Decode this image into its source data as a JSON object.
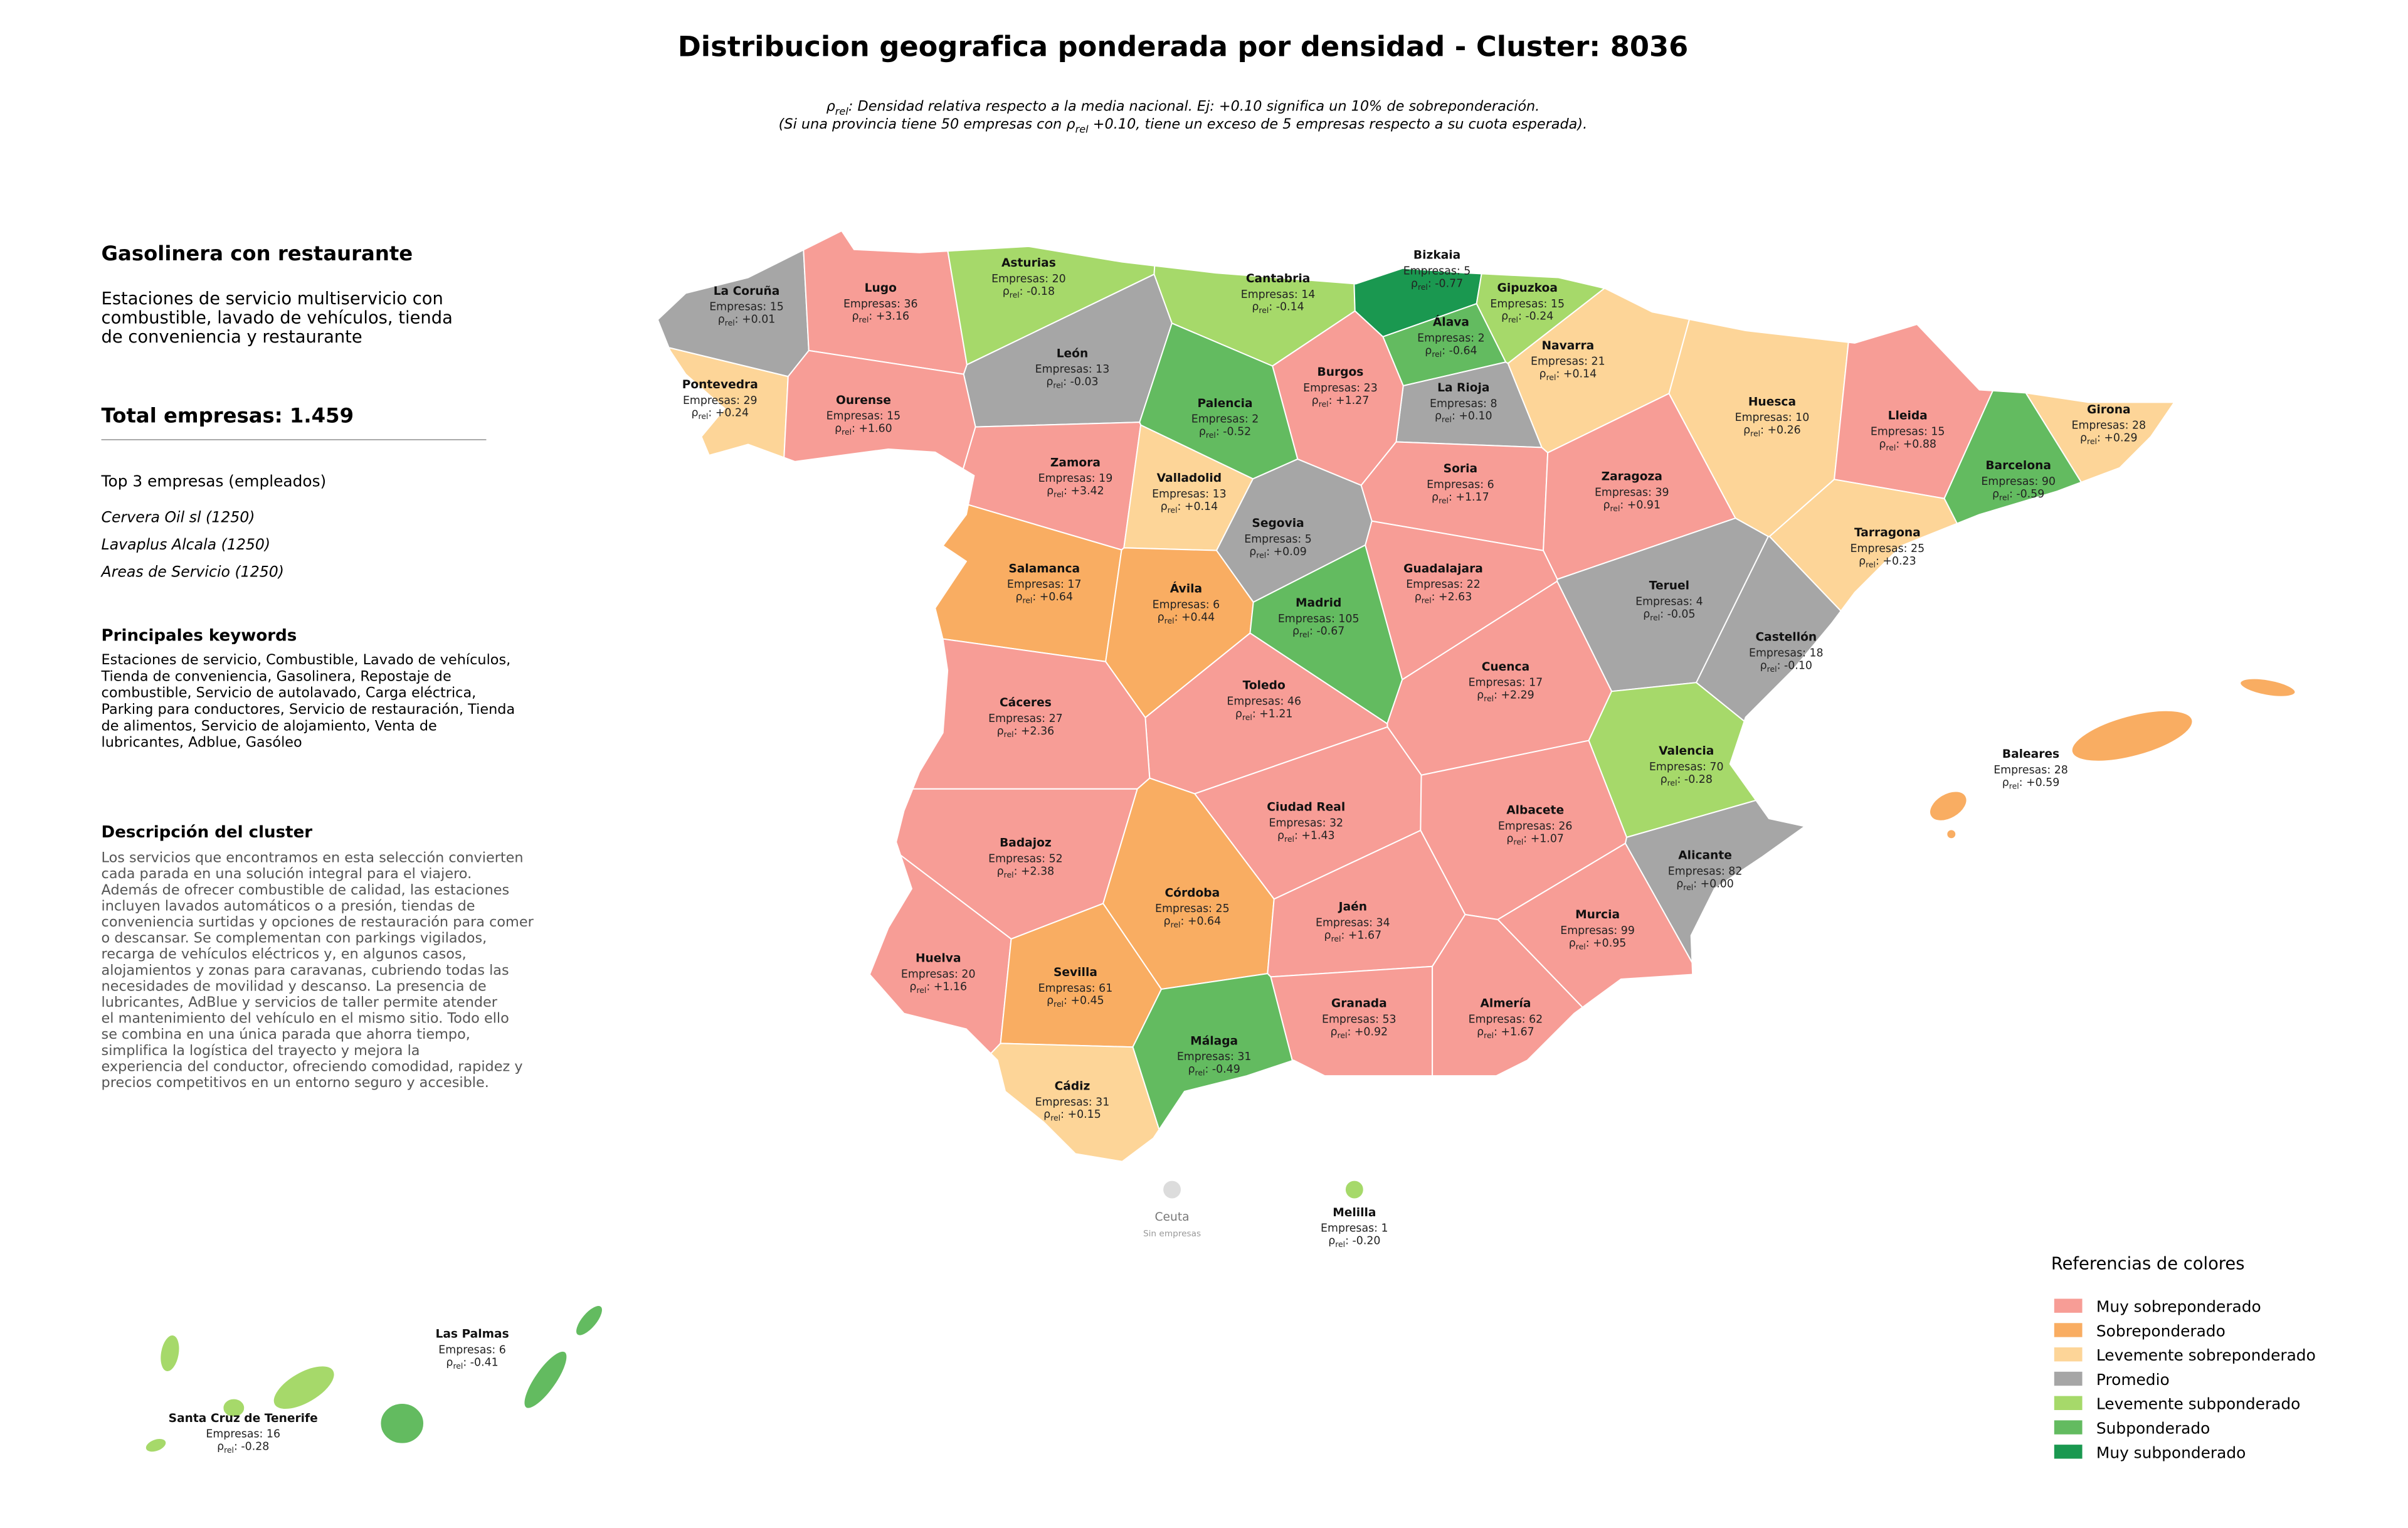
{
  "header": {
    "title": "Distribucion geografica ponderada por densidad - Cluster: 8036",
    "subtitle": [
      [
        {
          "text": "ρ"
        },
        {
          "text": "rel",
          "sub": true
        },
        {
          "text": ": Densidad relativa respecto a la media nacional. Ej: +0.10 significa un 10% de sobreponderación."
        }
      ],
      [
        {
          "text": "(Si una provincia tiene 50 empresas con "
        },
        {
          "text": "ρ"
        },
        {
          "text": "rel",
          "sub": true
        },
        {
          "text": " +0.10, tiene un exceso de 5 empresas respecto a su cuota esperada)."
        }
      ]
    ]
  },
  "panel": {
    "cluster_name": "Gasolinera con restaurante",
    "cluster_summary": [
      "Estaciones de servicio multiservicio con",
      "combustible, lavado de vehículos, tienda",
      "de conveniencia y restaurante"
    ],
    "total": "Total empresas: 1.459",
    "top_title": "Top 3 empresas (empleados)",
    "top": [
      "Cervera Oil sl (1250)",
      "Lavaplus Alcala (1250)",
      "Areas de Servicio (1250)"
    ],
    "keywords_title": "Principales keywords",
    "keywords": [
      "Estaciones de servicio, Combustible, Lavado de vehículos,",
      "Tienda de conveniencia, Gasolinera, Repostaje de",
      "combustible, Servicio de autolavado, Carga eléctrica,",
      "Parking para conductores, Servicio de restauración, Tienda",
      "de alimentos, Servicio de alojamiento, Venta de",
      "lubricantes, Adblue, Gasóleo"
    ],
    "description_title": "Descripción del cluster",
    "description": [
      "Los servicios que encontramos en esta selección convierten",
      "cada parada en una solución integral para el viajero.",
      "Además de ofrecer combustible de calidad, las estaciones",
      "incluyen lavados automáticos o a presión, tiendas de",
      "conveniencia surtidas y opciones de restauración para comer",
      "o descansar. Se complementan con parkings vigilados,",
      "recarga de vehículos eléctricos y, en algunos casos,",
      "alojamientos y zonas para caravanas, cubriendo todas las",
      "necesidades de movilidad y descanso. La presencia de",
      "lubricantes, AdBlue y servicios de taller permite atender",
      "el mantenimiento del vehículo en el mismo sitio. Todo ello",
      "se combina en una única parada que ahorra tiempo,",
      "simplifica la logística del trayecto y mejora la",
      "experiencia del conductor, ofreciendo comodidad, rapidez y",
      "precios competitivos en un entorno seguro y accesible."
    ]
  },
  "map": {
    "rho_symbol": "ρ",
    "rho_subscript": "rel",
    "rho_colon": ": ",
    "no_data_color": "#dcdcdc",
    "provinces": [
      {
        "name": "La Coruña",
        "empresas": "Empresas: 15",
        "rho": "+0.01",
        "class": 3
      },
      {
        "name": "Lugo",
        "empresas": "Empresas: 36",
        "rho": "+3.16",
        "class": 0
      },
      {
        "name": "Asturias",
        "empresas": "Empresas: 20",
        "rho": "-0.18",
        "class": 4
      },
      {
        "name": "Cantabria",
        "empresas": "Empresas: 14",
        "rho": "-0.14",
        "class": 4
      },
      {
        "name": "Bizkaia",
        "empresas": "Empresas: 5",
        "rho": "-0.77",
        "class": 6
      },
      {
        "name": "Gipuzkoa",
        "empresas": "Empresas: 15",
        "rho": "-0.24",
        "class": 4
      },
      {
        "name": "Álava",
        "empresas": "Empresas: 2",
        "rho": "-0.64",
        "class": 5
      },
      {
        "name": "Navarra",
        "empresas": "Empresas: 21",
        "rho": "+0.14",
        "class": 2
      },
      {
        "name": "La Rioja",
        "empresas": "Empresas: 8",
        "rho": "+0.10",
        "class": 3
      },
      {
        "name": "Burgos",
        "empresas": "Empresas: 23",
        "rho": "+1.27",
        "class": 0
      },
      {
        "name": "León",
        "empresas": "Empresas: 13",
        "rho": "-0.03",
        "class": 3
      },
      {
        "name": "Palencia",
        "empresas": "Empresas: 2",
        "rho": "-0.52",
        "class": 5
      },
      {
        "name": "Pontevedra",
        "empresas": "Empresas: 29",
        "rho": "+0.24",
        "class": 2
      },
      {
        "name": "Ourense",
        "empresas": "Empresas: 15",
        "rho": "+1.60",
        "class": 0
      },
      {
        "name": "Zamora",
        "empresas": "Empresas: 19",
        "rho": "+3.42",
        "class": 0
      },
      {
        "name": "Valladolid",
        "empresas": "Empresas: 13",
        "rho": "+0.14",
        "class": 2
      },
      {
        "name": "Soria",
        "empresas": "Empresas: 6",
        "rho": "+1.17",
        "class": 0
      },
      {
        "name": "Zaragoza",
        "empresas": "Empresas: 39",
        "rho": "+0.91",
        "class": 0
      },
      {
        "name": "Huesca",
        "empresas": "Empresas: 10",
        "rho": "+0.26",
        "class": 2
      },
      {
        "name": "Lleida",
        "empresas": "Empresas: 15",
        "rho": "+0.88",
        "class": 0
      },
      {
        "name": "Girona",
        "empresas": "Empresas: 28",
        "rho": "+0.29",
        "class": 2
      },
      {
        "name": "Barcelona",
        "empresas": "Empresas: 90",
        "rho": "-0.59",
        "class": 5
      },
      {
        "name": "Tarragona",
        "empresas": "Empresas: 25",
        "rho": "+0.23",
        "class": 2
      },
      {
        "name": "Segovia",
        "empresas": "Empresas: 5",
        "rho": "+0.09",
        "class": 3
      },
      {
        "name": "Salamanca",
        "empresas": "Empresas: 17",
        "rho": "+0.64",
        "class": 1
      },
      {
        "name": "Ávila",
        "empresas": "Empresas: 6",
        "rho": "+0.44",
        "class": 1
      },
      {
        "name": "Madrid",
        "empresas": "Empresas: 105",
        "rho": "-0.67",
        "class": 5
      },
      {
        "name": "Guadalajara",
        "empresas": "Empresas: 22",
        "rho": "+2.63",
        "class": 0
      },
      {
        "name": "Teruel",
        "empresas": "Empresas: 4",
        "rho": "-0.05",
        "class": 3
      },
      {
        "name": "Castellón",
        "empresas": "Empresas: 18",
        "rho": "-0.10",
        "class": 3
      },
      {
        "name": "Cuenca",
        "empresas": "Empresas: 17",
        "rho": "+2.29",
        "class": 0
      },
      {
        "name": "Toledo",
        "empresas": "Empresas: 46",
        "rho": "+1.21",
        "class": 0
      },
      {
        "name": "Cáceres",
        "empresas": "Empresas: 27",
        "rho": "+2.36",
        "class": 0
      },
      {
        "name": "Valencia",
        "empresas": "Empresas: 70",
        "rho": "-0.28",
        "class": 4
      },
      {
        "name": "Ciudad Real",
        "empresas": "Empresas: 32",
        "rho": "+1.43",
        "class": 0
      },
      {
        "name": "Albacete",
        "empresas": "Empresas: 26",
        "rho": "+1.07",
        "class": 0
      },
      {
        "name": "Badajoz",
        "empresas": "Empresas: 52",
        "rho": "+2.38",
        "class": 0
      },
      {
        "name": "Alicante",
        "empresas": "Empresas: 82",
        "rho": "+0.00",
        "class": 3
      },
      {
        "name": "Córdoba",
        "empresas": "Empresas: 25",
        "rho": "+0.64",
        "class": 1
      },
      {
        "name": "Jaén",
        "empresas": "Empresas: 34",
        "rho": "+1.67",
        "class": 0
      },
      {
        "name": "Murcia",
        "empresas": "Empresas: 99",
        "rho": "+0.95",
        "class": 0
      },
      {
        "name": "Huelva",
        "empresas": "Empresas: 20",
        "rho": "+1.16",
        "class": 0
      },
      {
        "name": "Sevilla",
        "empresas": "Empresas: 61",
        "rho": "+0.45",
        "class": 1
      },
      {
        "name": "Granada",
        "empresas": "Empresas: 53",
        "rho": "+0.92",
        "class": 0
      },
      {
        "name": "Almería",
        "empresas": "Empresas: 62",
        "rho": "+1.67",
        "class": 0
      },
      {
        "name": "Málaga",
        "empresas": "Empresas: 31",
        "rho": "-0.49",
        "class": 5
      },
      {
        "name": "Cádiz",
        "empresas": "Empresas: 31",
        "rho": "+0.15",
        "class": 2
      },
      {
        "name": "Baleares",
        "empresas": "Empresas: 28",
        "rho": "+0.59",
        "class": 1
      },
      {
        "name": "Ceuta",
        "empresas": "Sin empresas"
      },
      {
        "name": "Melilla",
        "empresas": "Empresas: 1",
        "rho": "-0.20",
        "class": 4
      },
      {
        "name": "Las Palmas",
        "empresas": "Empresas: 6",
        "rho": "-0.41",
        "class": 5
      },
      {
        "name": "Santa Cruz de Tenerife",
        "empresas": "Empresas: 16",
        "rho": "-0.28",
        "class": 4
      }
    ]
  },
  "legend": {
    "title": "Referencias de colores",
    "items": [
      {
        "label": "Muy sobreponderado",
        "color": "#f79d96"
      },
      {
        "label": "Sobreponderado",
        "color": "#f9ad62"
      },
      {
        "label": "Levemente sobreponderado",
        "color": "#fdd598"
      },
      {
        "label": "Promedio",
        "color": "#a6a6a6"
      },
      {
        "label": "Levemente subponderado",
        "color": "#a6d96a"
      },
      {
        "label": "Subponderado",
        "color": "#63bb60"
      },
      {
        "label": "Muy subponderado",
        "color": "#1a9850"
      }
    ]
  }
}
